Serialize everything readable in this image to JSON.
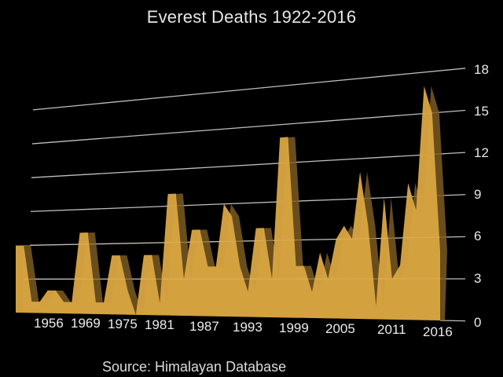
{
  "chart_data": {
    "type": "area",
    "title": "Everest Deaths 1922-2016",
    "source": "Source: Himalayan Database",
    "xlabel": "",
    "ylabel": "",
    "ylim": [
      0,
      18
    ],
    "yticks": [
      "0",
      "3",
      "6",
      "9",
      "12",
      "15",
      "18"
    ],
    "xticks": [
      "1956",
      "1969",
      "1975",
      "1981",
      "1987",
      "1993",
      "1999",
      "2005",
      "2011",
      "2016"
    ],
    "grid": true,
    "style": "3d perspective area, gold fill",
    "fill_color": "#d9a441",
    "shadow_color": "#7a5a22",
    "grid_color": "#bfbfbf",
    "background": "#000000",
    "values": [
      6,
      6,
      1,
      1,
      2,
      2,
      1,
      1,
      7,
      7,
      1,
      1,
      5,
      5,
      2,
      0,
      5,
      5,
      1,
      10,
      10,
      3,
      7,
      7,
      4,
      4,
      9,
      8,
      4,
      2,
      7,
      7,
      3,
      14,
      14,
      4,
      4,
      2,
      5,
      3,
      6,
      7,
      6,
      11,
      7,
      1,
      9,
      3,
      4,
      10,
      8,
      17,
      15,
      5
    ]
  },
  "header": {
    "title": "Everest Deaths 1922-2016"
  },
  "footer": {
    "source": "Source: Himalayan Database"
  }
}
